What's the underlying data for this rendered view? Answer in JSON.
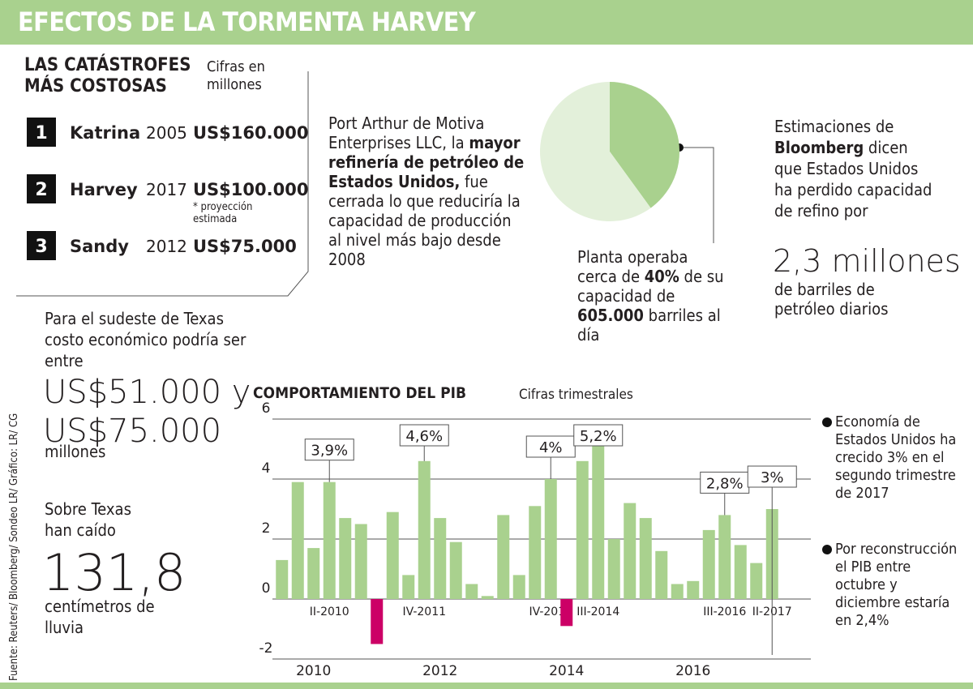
{
  "header": {
    "title": "EFECTOS DE LA TORMENTA HARVEY"
  },
  "costliest": {
    "title": "LAS CATÁSTROFES MÁS COSTOSAS",
    "unit_note": "Cifras en millones",
    "items": [
      {
        "rank": "1",
        "name": "Katrina",
        "year": "2005",
        "amount": "US$160.000"
      },
      {
        "rank": "2",
        "name": "Harvey",
        "year": "2017",
        "amount": "US$100.000"
      },
      {
        "rank": "3",
        "name": "Sandy",
        "year": "2012",
        "amount": "US$75.000"
      }
    ],
    "footnote": "* proyección estimada"
  },
  "refinery": {
    "text": [
      "Port Arthur de Motiva Enterprises LLC, la ",
      "mayor refinería de petróleo de Estados Unidos,",
      " fue cerrada lo que reduciría la capacidad de producción al nivel más bajo desde 2008"
    ]
  },
  "southeast": {
    "intro": "Para el sudeste de Texas costo económico podría ser entre",
    "amount": [
      "US$51.000 y",
      "US$75.000"
    ],
    "unit": "millones"
  },
  "rain": {
    "intro": "Sobre Texas han caído",
    "amount": "131,8",
    "unit": "centímetros de lluvia"
  },
  "source": "Fuente: Reuters/ Bloomberg/ Sondeo LR/ Gráfico: LR/ CG",
  "bloomberg": {
    "text": [
      "Estimaciones de ",
      "Bloomberg",
      " dicen que Estados Unidos ha perdido capacidad de refino por"
    ],
    "amount": "2,3 millones",
    "unit": "de barriles de petróleo diarios"
  },
  "gdp_notes": [
    "Economía de Estados Unidos ha crecido 3% en el segundo trimestre de 2017",
    "Por reconstrucción el PIB entre octubre y diciembre estaría en 2,4%"
  ],
  "chart_data": [
    {
      "type": "bar",
      "title": "COMPORTAMIENTO DEL PIB",
      "subtitle": "Cifras trimestrales",
      "categories": [
        null,
        null,
        null,
        "II-2010",
        null,
        null,
        null,
        null,
        null,
        "IV-2011",
        null,
        null,
        null,
        null,
        null,
        null,
        null,
        "IV-2013",
        null,
        null,
        "III-2014",
        null,
        null,
        null,
        null,
        null,
        null,
        null,
        "III-2016",
        null,
        null,
        "II-2017"
      ],
      "values": [
        1.3,
        3.9,
        1.7,
        3.9,
        2.7,
        2.5,
        -1.5,
        2.9,
        0.8,
        4.6,
        2.7,
        1.9,
        0.5,
        0.1,
        2.8,
        0.8,
        3.1,
        4.0,
        -0.9,
        4.6,
        5.2,
        2.0,
        3.2,
        2.7,
        1.6,
        0.5,
        0.6,
        2.3,
        2.8,
        1.8,
        1.2,
        3.0
      ],
      "value_labels": [
        null,
        null,
        null,
        "3,9%",
        null,
        null,
        null,
        null,
        null,
        "4,6%",
        null,
        null,
        null,
        null,
        null,
        null,
        null,
        "4%",
        null,
        null,
        "5,2%",
        null,
        null,
        null,
        null,
        null,
        null,
        null,
        "2,8%",
        null,
        null,
        "3%"
      ],
      "colors": {
        "positive": "#a9d18e",
        "negative": "#cc0066"
      },
      "ylim": [
        -2,
        6
      ],
      "yticks": [
        -2,
        0,
        2,
        4,
        6
      ],
      "grid": true,
      "years": [
        "2010",
        "2012",
        "2014",
        "2016"
      ]
    },
    {
      "type": "pie",
      "values": [
        40,
        60
      ],
      "colors": [
        "#a9d18e",
        "#e3f0da"
      ],
      "annotation": [
        "Planta operaba cerca de ",
        "40%",
        " de su capacidad de ",
        "605.000",
        " barriles al día"
      ]
    }
  ]
}
